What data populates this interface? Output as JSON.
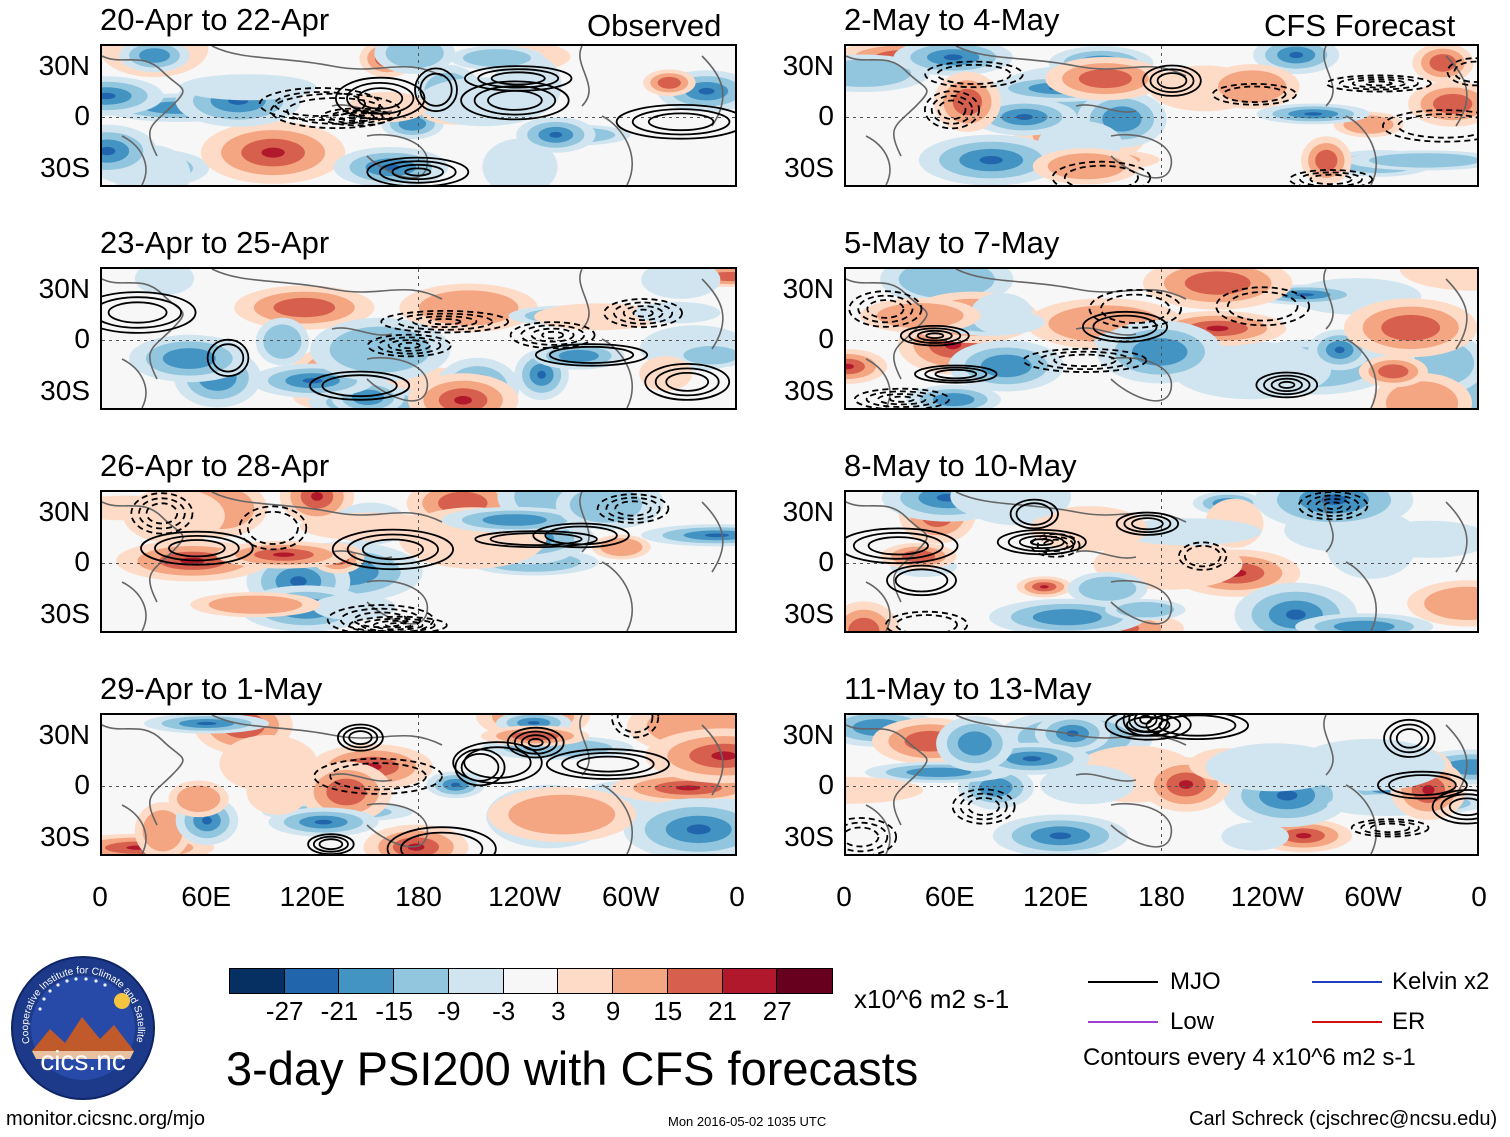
{
  "panels": [
    {
      "title": "20-Apr to 22-Apr",
      "corner": "Observed"
    },
    {
      "title": "2-May to 4-May",
      "corner": "CFS Forecast"
    },
    {
      "title": "23-Apr to 25-Apr",
      "corner": ""
    },
    {
      "title": "5-May to 7-May",
      "corner": ""
    },
    {
      "title": "26-Apr to 28-Apr",
      "corner": ""
    },
    {
      "title": "8-May to 10-May",
      "corner": ""
    },
    {
      "title": "29-Apr to 1-May",
      "corner": ""
    },
    {
      "title": "11-May to 13-May",
      "corner": ""
    }
  ],
  "lat_labels": [
    "30N",
    "0",
    "30S"
  ],
  "lon_labels": [
    "0",
    "60E",
    "120E",
    "180",
    "120W",
    "60W",
    "0"
  ],
  "colorbar": {
    "colors": [
      "#053061",
      "#2166ac",
      "#4393c3",
      "#92c5de",
      "#d1e5f0",
      "#f7f7f7",
      "#fddbc7",
      "#f4a582",
      "#d6604d",
      "#b2182b",
      "#67001f"
    ],
    "ticks": [
      "-27",
      "-21",
      "-15",
      "-9",
      "-3",
      "3",
      "9",
      "15",
      "21",
      "27"
    ],
    "units": "x10^6 m2 s-1"
  },
  "legend": {
    "mjo": {
      "label": "MJO",
      "color": "#000000"
    },
    "kelvin": {
      "label": "Kelvin x2",
      "color": "#1f3fbf"
    },
    "low": {
      "label": "Low",
      "color": "#a040d0"
    },
    "er": {
      "label": "ER",
      "color": "#d01010"
    },
    "contours_note": "Contours every 4 x10^6 m2 s-1"
  },
  "logo_text": "cics.nc",
  "logo_ring_text": "Cooperative Institute for Climate and Satellites",
  "main_title": "3-day PSI200 with CFS forecasts",
  "footer": {
    "url": "monitor.cicsnc.org/mjo",
    "timestamp": "Mon 2016-05-02 1035 UTC",
    "author": "Carl Schreck (cjschrec@ncsu.edu)"
  }
}
